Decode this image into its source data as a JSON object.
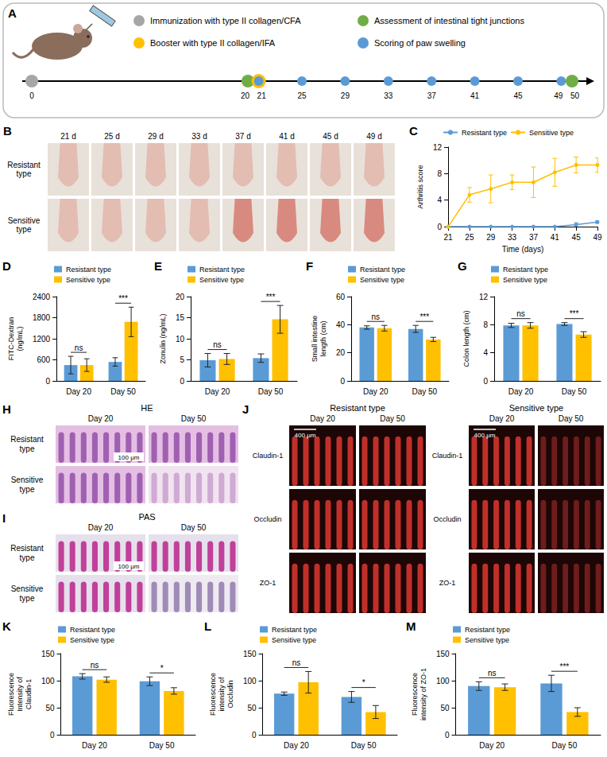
{
  "timeline": {
    "panel": "A",
    "ticks": [
      0,
      20,
      21,
      25,
      29,
      33,
      37,
      41,
      45,
      49,
      50
    ],
    "events": [
      {
        "label": "Immunization with type II collagen/CFA",
        "color": "#a6a6a6",
        "days": [
          0
        ]
      },
      {
        "label": "Assessment of intestinal tight junctions",
        "color": "#70ad47",
        "days": [
          20,
          50
        ]
      },
      {
        "label": "Booster with type II collagen/IFA",
        "color": "#ffc000",
        "days": [
          21
        ]
      },
      {
        "label": "Scoring of paw swelling",
        "color": "#5b9bd5",
        "days": [
          21,
          25,
          29,
          33,
          37,
          41,
          45,
          49
        ]
      }
    ]
  },
  "photos": {
    "panel": "B",
    "columns": [
      "21 d",
      "25 d",
      "29 d",
      "33 d",
      "37 d",
      "41 d",
      "45 d",
      "49 d"
    ],
    "rows": [
      "Resistant type",
      "Sensitive type"
    ]
  },
  "histology": [
    {
      "panel": "H",
      "title": "HE",
      "columns": [
        "Day 20",
        "Day 50"
      ],
      "rows": [
        "Resistant type",
        "Sensitive type"
      ],
      "scale_bar": "100 μm"
    },
    {
      "panel": "I",
      "title": "PAS",
      "columns": [
        "Day 20",
        "Day 50"
      ],
      "rows": [
        "Resistant type",
        "Sensitive type"
      ],
      "scale_bar": "100 μm"
    }
  ],
  "immunofluorescence": {
    "panel": "J",
    "groups": [
      {
        "title": "Resistant type",
        "columns": [
          "Day 20",
          "Day 50"
        ]
      },
      {
        "title": "Sensitive type",
        "columns": [
          "Day 20",
          "Day 50"
        ]
      }
    ],
    "rows": [
      "Claudin-1",
      "Occludin",
      "ZO-1"
    ],
    "scale_bar": "400 μm"
  },
  "chart_data": [
    {
      "panel": "C",
      "type": "line",
      "x": [
        21,
        25,
        29,
        33,
        37,
        41,
        45,
        49
      ],
      "xlim": [
        21,
        49
      ],
      "xticks": [
        21,
        25,
        29,
        33,
        37,
        41,
        45,
        49
      ],
      "ylim": [
        0,
        12
      ],
      "yticks": [
        0,
        4,
        8,
        12
      ],
      "xlabel": "Time (days)",
      "ylabel": "Arthritis score",
      "grid": false,
      "legend": "top",
      "marker": "circle",
      "series": [
        {
          "name": "Resistant type",
          "color": "#5b9bd5",
          "values": [
            0,
            0,
            0,
            0,
            0,
            0,
            0.3,
            0.7
          ],
          "errors": [
            0,
            0,
            0,
            0,
            0,
            0,
            0.3,
            0.2
          ]
        },
        {
          "name": "Sensitive type",
          "color": "#ffc000",
          "values": [
            0,
            4.8,
            5.7,
            6.7,
            6.7,
            8.2,
            9.3,
            9.3
          ],
          "errors": [
            0,
            1.1,
            2.1,
            1.1,
            2.3,
            2.1,
            1.2,
            1.1
          ]
        }
      ]
    },
    {
      "panel": "D",
      "type": "bar",
      "categories": [
        "Day 20",
        "Day 50"
      ],
      "ylim": [
        0,
        2400
      ],
      "yticks": [
        0,
        600,
        1200,
        1800,
        2400
      ],
      "ylabel": "FITC-Dextran (ng/mL)",
      "grid": false,
      "legend": "top-left",
      "annotations": [
        "ns",
        "***"
      ],
      "series": [
        {
          "name": "Resistant type",
          "color": "#5b9bd5",
          "values": [
            450,
            540
          ],
          "errors": [
            250,
            120
          ]
        },
        {
          "name": "Sensitive type",
          "color": "#ffc000",
          "values": [
            450,
            1680
          ],
          "errors": [
            180,
            420
          ]
        }
      ]
    },
    {
      "panel": "E",
      "type": "bar",
      "categories": [
        "Day 20",
        "Day 50"
      ],
      "ylim": [
        0,
        20
      ],
      "yticks": [
        0,
        5,
        10,
        15,
        20
      ],
      "ylabel": "Zonulin (ng/mL)",
      "grid": false,
      "legend": "top-left",
      "annotations": [
        "ns",
        "***"
      ],
      "series": [
        {
          "name": "Resistant type",
          "color": "#5b9bd5",
          "values": [
            4.9,
            5.4
          ],
          "errors": [
            1.6,
            1.0
          ]
        },
        {
          "name": "Sensitive type",
          "color": "#ffc000",
          "values": [
            5.2,
            14.6
          ],
          "errors": [
            1.3,
            3.3
          ]
        }
      ]
    },
    {
      "panel": "F",
      "type": "bar",
      "categories": [
        "Day 20",
        "Day 50"
      ],
      "ylim": [
        0,
        60
      ],
      "yticks": [
        0,
        20,
        40,
        60
      ],
      "ylabel": "Small intestine length (cm)",
      "grid": false,
      "legend": "top-left",
      "annotations": [
        "ns",
        "***"
      ],
      "series": [
        {
          "name": "Resistant type",
          "color": "#5b9bd5",
          "values": [
            38,
            37
          ],
          "errors": [
            1.2,
            2.5
          ]
        },
        {
          "name": "Sensitive type",
          "color": "#ffc000",
          "values": [
            37.5,
            29.5
          ],
          "errors": [
            2,
            1.5
          ]
        }
      ]
    },
    {
      "panel": "G",
      "type": "bar",
      "categories": [
        "Day 20",
        "Day 50"
      ],
      "ylim": [
        0,
        12
      ],
      "yticks": [
        0,
        4,
        8,
        12
      ],
      "ylabel": "Colon length (cm)",
      "grid": false,
      "legend": "top-left",
      "annotations": [
        "ns",
        "***"
      ],
      "series": [
        {
          "name": "Resistant type",
          "color": "#5b9bd5",
          "values": [
            7.9,
            8.1
          ],
          "errors": [
            0.3,
            0.2
          ]
        },
        {
          "name": "Sensitive type",
          "color": "#ffc000",
          "values": [
            7.9,
            6.6
          ],
          "errors": [
            0.4,
            0.4
          ]
        }
      ]
    },
    {
      "panel": "K",
      "type": "bar",
      "categories": [
        "Day 20",
        "Day 50"
      ],
      "ylim": [
        0,
        150
      ],
      "yticks": [
        0,
        50,
        100,
        150
      ],
      "ylabel": "Fluorescence Intensity of Claudin-1",
      "grid": false,
      "legend": "top-left",
      "annotations": [
        "ns",
        "*"
      ],
      "series": [
        {
          "name": "Resistant type",
          "color": "#5b9bd5",
          "values": [
            108,
            99
          ],
          "errors": [
            5,
            8
          ]
        },
        {
          "name": "Sensitive type",
          "color": "#ffc000",
          "values": [
            102,
            81
          ],
          "errors": [
            5,
            6
          ]
        }
      ]
    },
    {
      "panel": "L",
      "type": "bar",
      "categories": [
        "Day 20",
        "Day 50"
      ],
      "ylim": [
        0,
        150
      ],
      "yticks": [
        0,
        50,
        100,
        150
      ],
      "ylabel": "Fluorescence intensity of Occludin",
      "grid": false,
      "legend": "top-left",
      "annotations": [
        "ns",
        "*"
      ],
      "series": [
        {
          "name": "Resistant type",
          "color": "#5b9bd5",
          "values": [
            76,
            70
          ],
          "errors": [
            3,
            10
          ]
        },
        {
          "name": "Sensitive type",
          "color": "#ffc000",
          "values": [
            97,
            42
          ],
          "errors": [
            20,
            12
          ]
        }
      ]
    },
    {
      "panel": "M",
      "type": "bar",
      "categories": [
        "Day 20",
        "Day 50"
      ],
      "ylim": [
        0,
        150
      ],
      "yticks": [
        0,
        50,
        100,
        150
      ],
      "ylabel": "Fluorescence intensity of ZO-1",
      "grid": false,
      "legend": "top-left",
      "annotations": [
        "ns",
        "***"
      ],
      "series": [
        {
          "name": "Resistant type",
          "color": "#5b9bd5",
          "values": [
            90,
            95
          ],
          "errors": [
            8,
            15
          ]
        },
        {
          "name": "Sensitive type",
          "color": "#ffc000",
          "values": [
            88,
            42
          ],
          "errors": [
            6,
            8
          ]
        }
      ]
    }
  ]
}
